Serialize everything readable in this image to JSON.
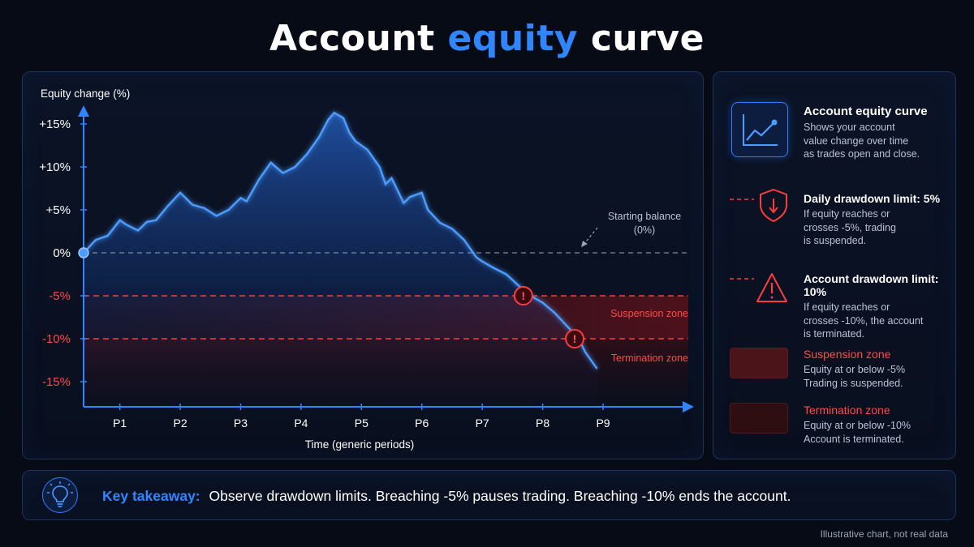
{
  "title": {
    "prefix": "Account",
    "highlight": "equity",
    "suffix": "curve"
  },
  "chart_data": {
    "type": "line",
    "ylabel": "Equity change (%)",
    "xlabel": "Time (generic periods)",
    "ylim": [
      -18,
      18
    ],
    "xlim": [
      0.4,
      9.6
    ],
    "y_ticks": [
      15,
      10,
      5,
      0,
      -5,
      -10,
      -15
    ],
    "y_tick_labels": [
      "+15%",
      "+10%",
      "+5%",
      "0%",
      "-5%",
      "-10%",
      "-15%"
    ],
    "categories": [
      "P1",
      "P2",
      "P3",
      "P4",
      "P5",
      "P6",
      "P7",
      "P8",
      "P9"
    ],
    "x_ticks": [
      1,
      2,
      3,
      4,
      5,
      6,
      7,
      8,
      9
    ],
    "series": [
      {
        "x": [
          0.4,
          0.6,
          0.8,
          1.0,
          1.1,
          1.3,
          1.45,
          1.6,
          1.8,
          2.0,
          2.2,
          2.4,
          2.6,
          2.8,
          3.0,
          3.1,
          3.3,
          3.5,
          3.7,
          3.9,
          4.1,
          4.3,
          4.45,
          4.55,
          4.7,
          4.8,
          4.9,
          5.1,
          5.3,
          5.4,
          5.5,
          5.7,
          5.8,
          6.0,
          6.1,
          6.3,
          6.5,
          6.7,
          6.9,
          7.0,
          7.2,
          7.4,
          7.6,
          7.8,
          8.0,
          8.2,
          8.4,
          8.6,
          8.7,
          8.9
        ],
        "y": [
          0,
          1.5,
          2.0,
          3.8,
          3.3,
          2.6,
          3.6,
          3.8,
          5.5,
          7.0,
          5.6,
          5.2,
          4.3,
          5.0,
          6.4,
          6.0,
          8.5,
          10.5,
          9.3,
          10.0,
          11.5,
          13.5,
          15.5,
          16.3,
          15.7,
          14.0,
          13.0,
          12.0,
          10.0,
          8.0,
          8.7,
          5.8,
          6.5,
          7.0,
          5.0,
          3.5,
          2.8,
          1.5,
          -0.5,
          -1.0,
          -1.8,
          -2.5,
          -3.8,
          -5.0,
          -5.8,
          -7.0,
          -8.5,
          -10.0,
          -11.5,
          -13.5
        ]
      }
    ],
    "thresholds": [
      {
        "value": 0,
        "style": "dashed-gray"
      },
      {
        "value": -5,
        "style": "dashed-red"
      },
      {
        "value": -10,
        "style": "dashed-red"
      }
    ],
    "markers": [
      {
        "x": 7.68,
        "y": -5
      },
      {
        "x": 8.53,
        "y": -10
      }
    ],
    "annotations": {
      "start_line1": "Starting balance",
      "start_line2": "(0%)",
      "suspension": "Suspension zone",
      "termination": "Termination zone"
    }
  },
  "legend": {
    "equity": {
      "title": "Account equity curve",
      "line1": "Shows your account",
      "line2": "value change over time",
      "line3": "as trades open and close.",
      "icon": "line-chart-icon"
    },
    "daily": {
      "title": "Daily drawdown limit: 5%",
      "line1": "If equity reaches or",
      "line2": "crosses -5%, trading",
      "line3": "is suspended.",
      "icon": "shield-down-icon"
    },
    "account": {
      "title": "Account drawdown limit: 10%",
      "line1": "If equity reaches or",
      "line2": "crosses -10%, the account",
      "line3": "is terminated.",
      "icon": "warning-icon"
    },
    "suspension": {
      "title": "Suspension zone",
      "line1": "Equity at or below -5%",
      "line2": "Trading is suspended."
    },
    "termination": {
      "title": "Termination zone",
      "line1": "Equity at or below -10%",
      "line2": "Account is terminated."
    }
  },
  "takeaway": {
    "label": "Key takeaway:",
    "text": "Observe drawdown limits. Breaching -5% pauses trading. Breaching -10% ends the account.",
    "icon": "lightbulb-icon"
  },
  "footnote": "Illustrative chart, not real data",
  "colors": {
    "accent": "#2f86ff",
    "danger": "#ff4a4a",
    "background": "#070b16"
  }
}
